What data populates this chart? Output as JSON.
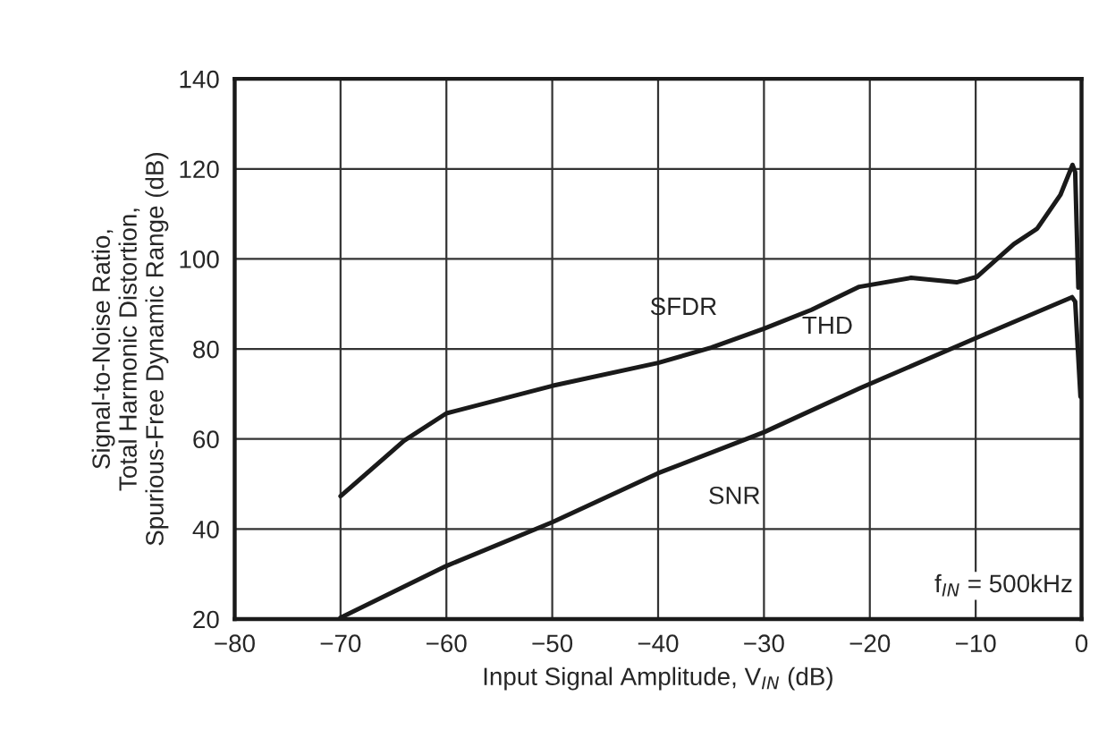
{
  "chart_data": {
    "type": "line",
    "xlabel": "Input Signal Amplitude, V$_{IN}$ (dB)",
    "ylabel": "Signal-to-Noise Ratio,\nTotal Harmonic Distortion,\nSpurious-Free Dynamic Range (dB)",
    "xlim": [
      -80,
      0
    ],
    "xticks": [
      -80,
      -70,
      -60,
      -50,
      -40,
      -30,
      -20,
      -10,
      0
    ],
    "ylim": [
      20,
      140
    ],
    "yticks": [
      20,
      40,
      60,
      80,
      100,
      120,
      140
    ],
    "grid": true,
    "line_style": "solid",
    "marker": "none",
    "series": [
      {
        "color": "#1a1a1a",
        "x": [
          -70,
          -64,
          -60,
          -50,
          -40,
          -35,
          -30,
          -25.5,
          -21,
          -16.1,
          -11.8,
          -9.9,
          -6.4,
          -4.2,
          -2.0,
          -0.85,
          -0.6,
          -0.3
        ],
        "values": [
          47.3,
          59.6,
          65.7,
          71.8,
          76.9,
          80.3,
          84.5,
          88.7,
          93.8,
          95.8,
          94.8,
          96,
          103.3,
          106.7,
          114.2,
          120.9,
          119.3,
          93.6
        ]
      },
      {
        "color": "#1a1a1a",
        "x": [
          -70,
          -60,
          -50,
          -40,
          -30,
          -21,
          -10,
          -0.9,
          -0.6,
          -0.1
        ],
        "values": [
          20.3,
          31.8,
          41.5,
          52.4,
          61.5,
          71.2,
          82.4,
          91.5,
          90.5,
          69.4
        ]
      }
    ],
    "annotations": [
      "SFDR",
      "THD",
      "SNR",
      "f$_{IN}$ = 500kHz"
    ]
  }
}
